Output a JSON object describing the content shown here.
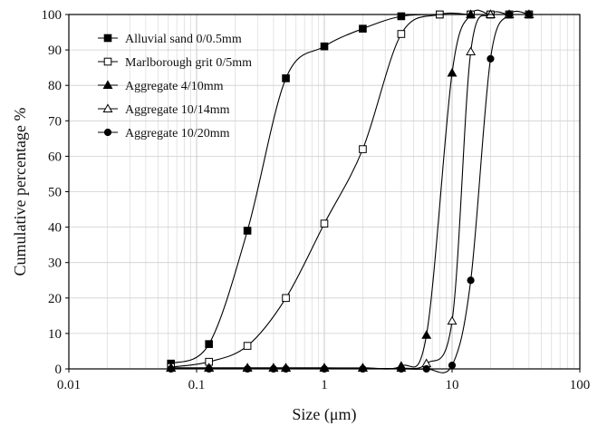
{
  "chart_data": {
    "type": "line",
    "xlabel": "Size (μm)",
    "ylabel": "Cumulative percentage %",
    "x_scale": "log",
    "xlim": [
      0.01,
      100
    ],
    "ylim": [
      0,
      100
    ],
    "x_ticks": [
      0.01,
      0.1,
      1,
      10,
      100
    ],
    "x_tick_labels": [
      "0.01",
      "0.1",
      "1",
      "10",
      "100"
    ],
    "y_ticks": [
      0,
      10,
      20,
      30,
      40,
      50,
      60,
      70,
      80,
      90,
      100
    ],
    "y_tick_labels": [
      "0",
      "10",
      "20",
      "30",
      "40",
      "50",
      "60",
      "70",
      "80",
      "90",
      "100"
    ],
    "grid": true,
    "legend_position": "top-left",
    "series": [
      {
        "name": "Alluvial sand 0/0.5mm",
        "marker": "square-filled",
        "x": [
          0.063,
          0.125,
          0.25,
          0.5,
          1,
          2,
          4,
          8,
          14,
          20,
          28,
          40
        ],
        "y": [
          1.5,
          7,
          39,
          82,
          91,
          96,
          99.5,
          100,
          100,
          100,
          100,
          100
        ]
      },
      {
        "name": "Marlborough grit 0/5mm",
        "marker": "square-open",
        "x": [
          0.063,
          0.125,
          0.25,
          0.5,
          1,
          2,
          4,
          8,
          14,
          20,
          28,
          40
        ],
        "y": [
          0.5,
          2,
          6.5,
          20,
          41,
          62,
          94.5,
          100,
          100,
          100,
          100,
          100
        ]
      },
      {
        "name": "Aggregate 4/10mm",
        "marker": "triangle-filled",
        "x": [
          0.063,
          0.125,
          0.25,
          0.4,
          0.5,
          1,
          2,
          4,
          6.3,
          10,
          14,
          20,
          28,
          40
        ],
        "y": [
          0.3,
          0.3,
          0.3,
          0.3,
          0.3,
          0.3,
          0.3,
          0.8,
          9.5,
          83.5,
          100,
          100,
          100,
          100
        ]
      },
      {
        "name": "Aggregate 10/14mm",
        "marker": "triangle-open",
        "x": [
          0.063,
          0.125,
          0.25,
          0.4,
          0.5,
          1,
          2,
          4,
          6.3,
          10,
          14,
          20,
          28,
          40
        ],
        "y": [
          0.2,
          0.2,
          0.2,
          0.2,
          0.2,
          0.2,
          0.2,
          0.2,
          1.5,
          13.5,
          89.5,
          100,
          100,
          100
        ]
      },
      {
        "name": "Aggregate 10/20mm",
        "marker": "circle-filled",
        "x": [
          0.063,
          0.125,
          0.25,
          0.4,
          0.5,
          1,
          2,
          4,
          6.3,
          10,
          14,
          20,
          28,
          40
        ],
        "y": [
          0,
          0,
          0,
          0,
          0,
          0,
          0,
          0,
          0,
          1,
          25,
          87.5,
          100,
          100
        ]
      }
    ]
  }
}
